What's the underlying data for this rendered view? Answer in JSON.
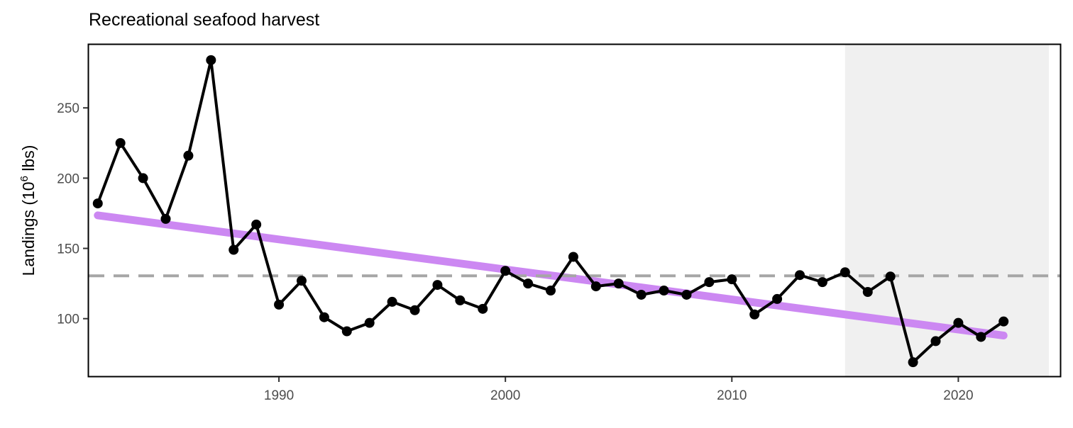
{
  "chart_data": {
    "type": "line",
    "title": "Recreational seafood harvest",
    "xlabel": "",
    "ylabel": "Landings (10",
    "ylabel_sup": "6",
    "ylabel_end": " lbs)",
    "xlim": [
      1981.6,
      2024.5
    ],
    "ylim": [
      59,
      295
    ],
    "x_ticks": [
      1990,
      2000,
      2010,
      2020
    ],
    "y_ticks": [
      100,
      150,
      200,
      250
    ],
    "grid": false,
    "legend": "none",
    "shaded_region": {
      "from": 2015,
      "to": 2024
    },
    "reference_line": {
      "y": 130.5,
      "style": "dashed"
    },
    "trend": {
      "x": [
        1982,
        2022
      ],
      "y": [
        173.5,
        88
      ]
    },
    "series": [
      {
        "x": [
          1982,
          1983,
          1984,
          1985,
          1986,
          1987,
          1988,
          1989,
          1990,
          1991,
          1992,
          1993,
          1994,
          1995,
          1996,
          1997,
          1998,
          1999,
          2000,
          2001,
          2002,
          2003,
          2004,
          2005,
          2006,
          2007,
          2008,
          2009,
          2010,
          2011,
          2012,
          2013,
          2014,
          2015,
          2016,
          2017,
          2018,
          2019,
          2020,
          2021,
          2022
        ],
        "values": [
          182,
          225,
          200,
          171,
          216,
          284,
          149,
          167,
          110,
          127,
          101,
          91,
          97,
          112,
          106,
          124,
          113,
          107,
          134,
          125,
          120,
          144,
          123,
          125,
          117,
          120,
          117,
          126,
          128,
          103,
          114,
          131,
          126,
          133,
          119,
          130,
          69,
          84,
          97,
          87,
          98
        ]
      }
    ],
    "colors": {
      "series": "#000000",
      "trend": "#cc88f2",
      "reference": "#a6a6a6",
      "shade": "#f0f0f0",
      "axis_text": "#4d4d4d"
    }
  }
}
